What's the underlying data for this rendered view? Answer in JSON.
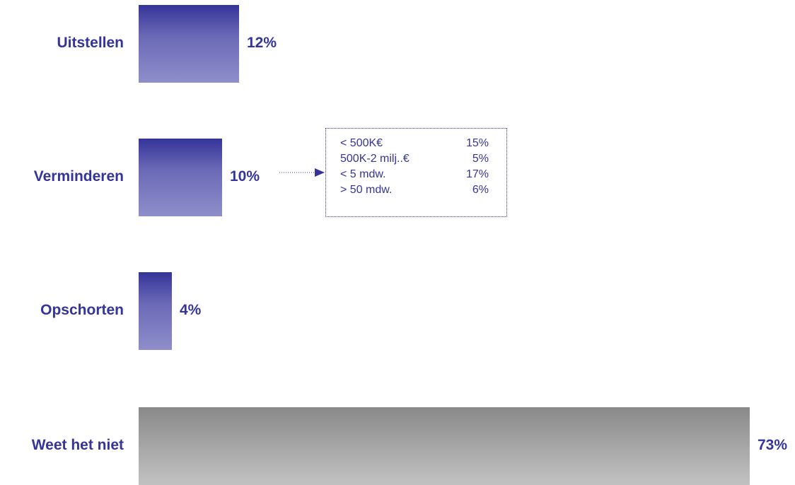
{
  "chart_data": {
    "type": "bar",
    "orientation": "horizontal",
    "categories": [
      "Uitstellen",
      "Verminderen",
      "Opschorten",
      "Weet het niet"
    ],
    "values": [
      12,
      10,
      4,
      73
    ],
    "value_labels": [
      "12%",
      "10%",
      "4%",
      "73%"
    ],
    "unit": "%",
    "xlim": [
      0,
      73
    ],
    "grid": false,
    "legend": "none",
    "colors": {
      "bar_top": "#35349a",
      "bar_bottom": "#8f8ecb",
      "gray_top": "#898989",
      "gray_bottom": "#c2c2c2",
      "text": "#35349a"
    },
    "annotation": {
      "attached_to": "Verminderen",
      "rows": [
        {
          "label": "< 500K€",
          "value": "15%"
        },
        {
          "label": "500K-2 milj..€",
          "value": "5%"
        },
        {
          "label": "< 5 mdw.",
          "value": "17%"
        },
        {
          "label": "> 50 mdw.",
          "value": "6%"
        }
      ]
    }
  }
}
